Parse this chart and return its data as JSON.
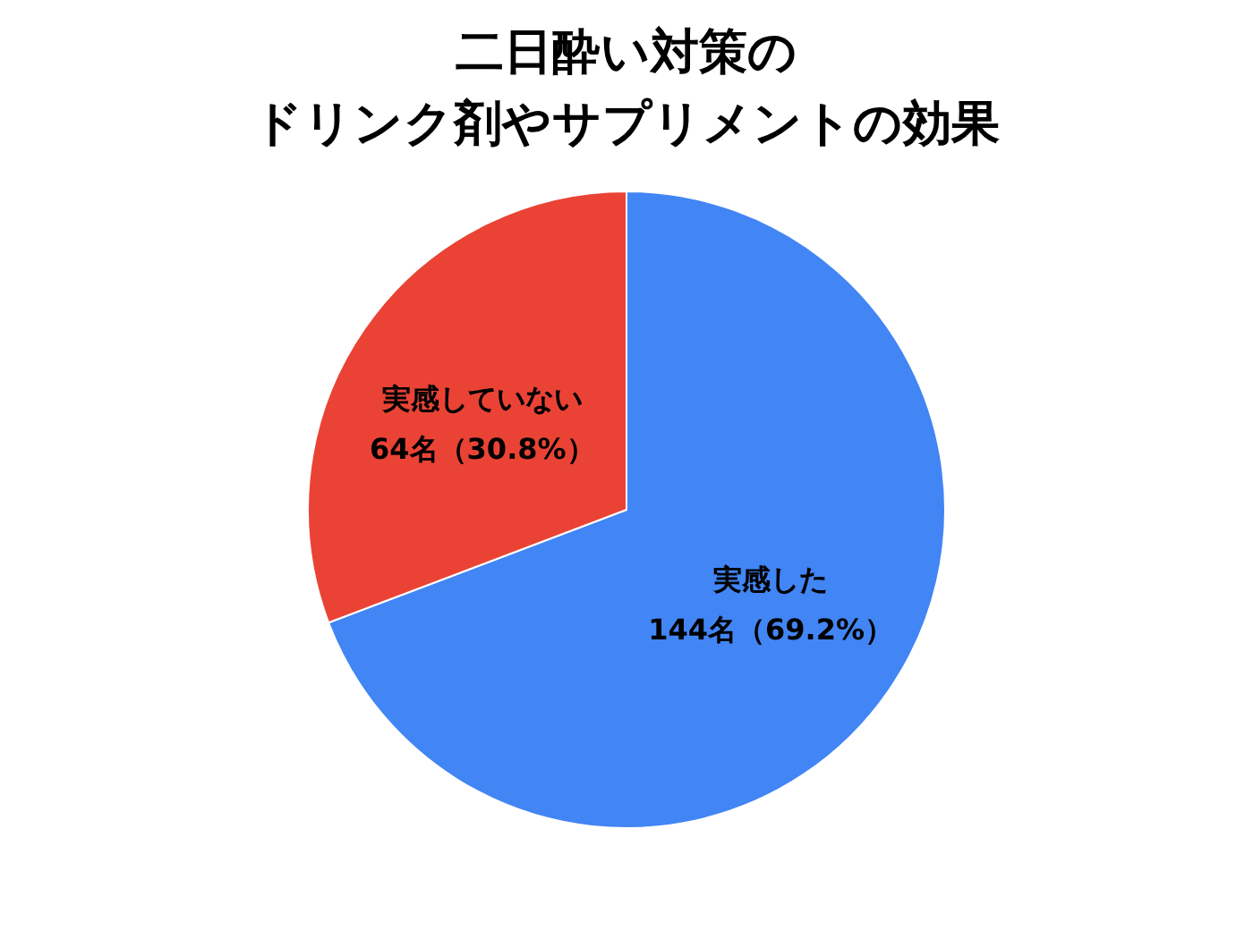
{
  "chart_data": {
    "type": "pie",
    "title": "二日酔い対策の",
    "subtitle": "ドリンク剤やサプリメントの効果",
    "categories": [
      "実感した",
      "実感していない"
    ],
    "values": [
      144,
      64
    ],
    "value_labels": [
      "144名（69.2%）",
      "64名（30.8%）"
    ],
    "colors": [
      "#4285f4",
      "#ea4335"
    ]
  }
}
